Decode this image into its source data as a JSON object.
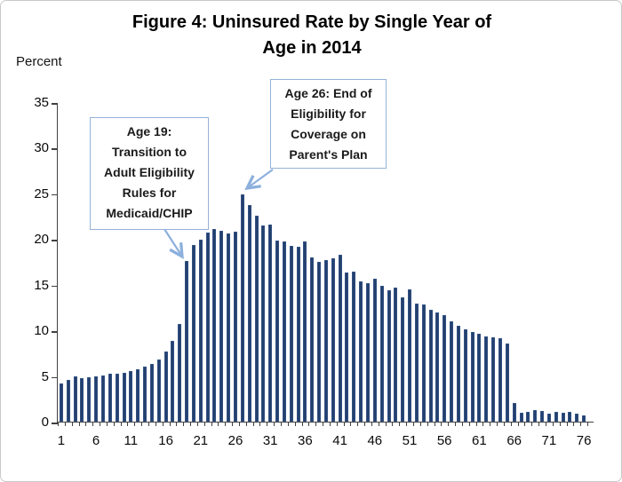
{
  "figure": {
    "title_line1": "Figure 4: Uninsured Rate by Single Year of",
    "title_line2": "Age in 2014",
    "y_axis_unit_label": "Percent"
  },
  "annotations": {
    "age19": {
      "lines": [
        "Age 19:",
        "Transition to",
        "Adult Eligibility",
        "Rules for",
        "Medicaid/CHIP"
      ],
      "points_to": "bar for age 19"
    },
    "age26": {
      "lines": [
        "Age 26: End of",
        "Eligibility for",
        "Coverage on",
        "Parent's Plan"
      ],
      "points_to": "peak bar near age 26-27"
    }
  },
  "colors": {
    "bar": "#23406e",
    "annotation_border": "#94b2d8",
    "arrow": "#8db0dd",
    "axis": "#404040",
    "text": "#000000"
  },
  "chart_data": {
    "type": "bar",
    "title": "Figure 4: Uninsured Rate by Single Year of Age in 2014",
    "xlabel": "",
    "ylabel": "Percent",
    "x": [
      1,
      2,
      3,
      4,
      5,
      6,
      7,
      8,
      9,
      10,
      11,
      12,
      13,
      14,
      15,
      16,
      17,
      18,
      19,
      20,
      21,
      22,
      23,
      24,
      25,
      26,
      27,
      28,
      29,
      30,
      31,
      32,
      33,
      34,
      35,
      36,
      37,
      38,
      39,
      40,
      41,
      42,
      43,
      44,
      45,
      46,
      47,
      48,
      49,
      50,
      51,
      52,
      53,
      54,
      55,
      56,
      57,
      58,
      59,
      60,
      61,
      62,
      63,
      64,
      65,
      66,
      67,
      68,
      69,
      70,
      71,
      72,
      73,
      74,
      75,
      76
    ],
    "values": [
      4.2,
      4.6,
      5.0,
      4.8,
      4.9,
      5.0,
      5.1,
      5.3,
      5.3,
      5.4,
      5.5,
      5.7,
      6.0,
      6.3,
      6.8,
      7.7,
      8.9,
      10.7,
      17.6,
      19.4,
      19.9,
      20.7,
      21.1,
      20.9,
      20.6,
      20.8,
      24.9,
      23.7,
      22.6,
      21.5,
      21.6,
      19.8,
      19.7,
      19.3,
      19.2,
      19.7,
      18.0,
      17.5,
      17.7,
      17.9,
      18.3,
      16.3,
      16.4,
      15.4,
      15.2,
      15.7,
      14.9,
      14.4,
      14.7,
      13.6,
      14.5,
      12.9,
      12.8,
      12.3,
      12.0,
      11.7,
      11.0,
      10.5,
      10.1,
      9.8,
      9.6,
      9.3,
      9.2,
      9.1,
      8.6,
      2.0,
      1.0,
      1.1,
      1.3,
      1.2,
      0.9,
      1.1,
      1.0,
      1.1,
      0.9,
      0.7
    ],
    "x_tick_labels": [
      1,
      6,
      11,
      16,
      21,
      26,
      31,
      36,
      41,
      46,
      51,
      56,
      61,
      66,
      71,
      76
    ],
    "y_ticks": [
      0,
      5,
      10,
      15,
      20,
      25,
      30,
      35
    ],
    "ylim": [
      0,
      35
    ],
    "grid": false,
    "legend": false
  }
}
